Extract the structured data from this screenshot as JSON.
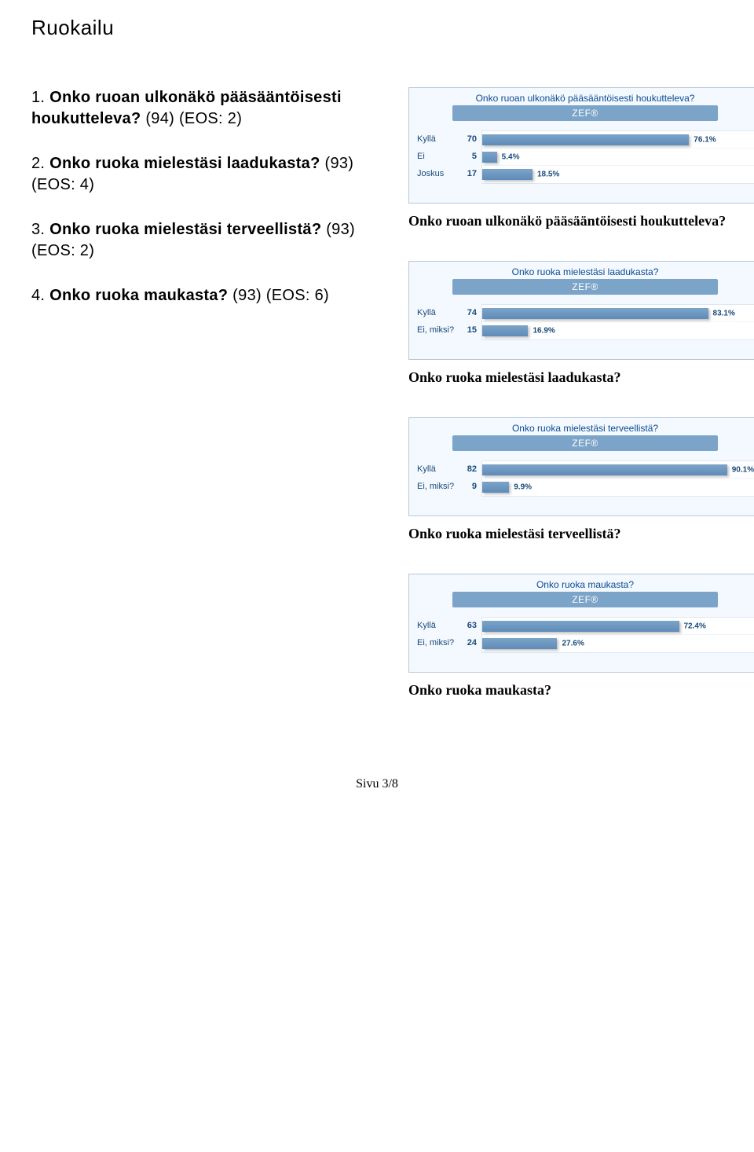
{
  "section_title": "Ruokailu",
  "questions": [
    {
      "num": "1.",
      "bold": "Onko ruoan ulkonäkö pääsääntöisesti houkutteleva?",
      "tail": " (94) (EOS: 2)"
    },
    {
      "num": "2.",
      "bold": "Onko ruoka mielestäsi laadukasta?",
      "tail": " (93) (EOS: 4)"
    },
    {
      "num": "3.",
      "bold": "Onko ruoka mielestäsi terveellistä?",
      "tail": " (93) (EOS: 2)"
    },
    {
      "num": "4.",
      "bold": "Onko ruoka maukasta?",
      "tail": " (93) (EOS: 6)"
    }
  ],
  "zef_label": "ZEF®",
  "charts": [
    {
      "title": "Onko ruoan ulkonäkö pääsääntöisesti houkutteleva?",
      "caption": "Onko ruoan ulkonäkö pääsääntöisesti houkutteleva?",
      "rows": [
        {
          "label": "Kyllä",
          "count": 70,
          "pct": 76.1
        },
        {
          "label": "Ei",
          "count": 5,
          "pct": 5.4
        },
        {
          "label": "Joskus",
          "count": 17,
          "pct": 18.5
        }
      ],
      "bar_color": "#7ba4c8",
      "bg": "#f3f9ff",
      "scale_max": 100
    },
    {
      "title": "Onko ruoka mielestäsi laadukasta?",
      "caption": "Onko ruoka mielestäsi laadukasta?",
      "rows": [
        {
          "label": "Kyllä",
          "count": 74,
          "pct": 83.1
        },
        {
          "label": "Ei, miksi?",
          "count": 15,
          "pct": 16.9
        }
      ],
      "bar_color": "#7ba4c8",
      "bg": "#f3f9ff",
      "scale_max": 100
    },
    {
      "title": "Onko ruoka mielestäsi terveellistä?",
      "caption": "Onko ruoka mielestäsi terveellistä?",
      "rows": [
        {
          "label": "Kyllä",
          "count": 82,
          "pct": 90.1
        },
        {
          "label": "Ei, miksi?",
          "count": 9,
          "pct": 9.9
        }
      ],
      "bar_color": "#7ba4c8",
      "bg": "#f3f9ff",
      "scale_max": 100
    },
    {
      "title": "Onko ruoka maukasta?",
      "caption": "Onko ruoka maukasta?",
      "rows": [
        {
          "label": "Kyllä",
          "count": 63,
          "pct": 72.4
        },
        {
          "label": "Ei, miksi?",
          "count": 24,
          "pct": 27.6
        }
      ],
      "bar_color": "#7ba4c8",
      "bg": "#f3f9ff",
      "scale_max": 100
    }
  ],
  "footer": "Sivu 3/8"
}
